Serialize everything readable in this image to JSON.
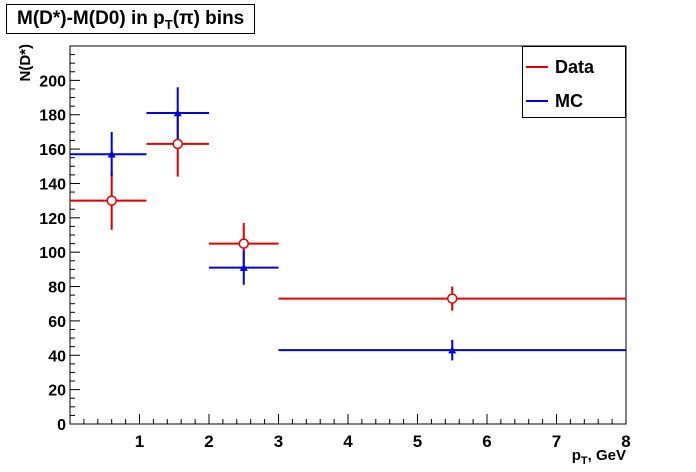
{
  "title": {
    "main": "M(D*)-M(D0) in p",
    "sub": "T",
    "rest": "(π) bins"
  },
  "chart_data": {
    "type": "scatter",
    "title": "M(D*)-M(D0) in pT(π) bins",
    "xlabel": {
      "main": "p",
      "sub": "T",
      "rest": ", GeV"
    },
    "ylabel": "N(D*)",
    "xlim": [
      0,
      8
    ],
    "ylim": [
      0,
      220
    ],
    "xticks": [
      "1",
      "2",
      "3",
      "4",
      "5",
      "6",
      "7",
      "8"
    ],
    "yticks": [
      "0",
      "20",
      "40",
      "60",
      "80",
      "100",
      "120",
      "140",
      "160",
      "180",
      "200"
    ],
    "grid": false,
    "legend_position": "top-right",
    "series": [
      {
        "name": "Data",
        "color": "#e00000",
        "marker": "open-circle",
        "points": [
          {
            "x": 0.6,
            "xlo": 0.0,
            "xhi": 1.1,
            "y": 130,
            "yerr": 17
          },
          {
            "x": 1.55,
            "xlo": 1.1,
            "xhi": 2.0,
            "y": 163,
            "yerr": 19
          },
          {
            "x": 2.5,
            "xlo": 2.0,
            "xhi": 3.0,
            "y": 105,
            "yerr": 12
          },
          {
            "x": 5.5,
            "xlo": 3.0,
            "xhi": 8.0,
            "y": 73,
            "yerr": 7
          }
        ]
      },
      {
        "name": "MC",
        "color": "#0000e0",
        "marker": "triangle",
        "points": [
          {
            "x": 0.6,
            "xlo": 0.0,
            "xhi": 1.1,
            "y": 157,
            "yerr": 13
          },
          {
            "x": 1.55,
            "xlo": 1.1,
            "xhi": 2.0,
            "y": 181,
            "yerr": 15
          },
          {
            "x": 2.5,
            "xlo": 2.0,
            "xhi": 3.0,
            "y": 91,
            "yerr": 10
          },
          {
            "x": 5.5,
            "xlo": 3.0,
            "xhi": 8.0,
            "y": 43,
            "yerr": 6
          }
        ]
      }
    ]
  }
}
